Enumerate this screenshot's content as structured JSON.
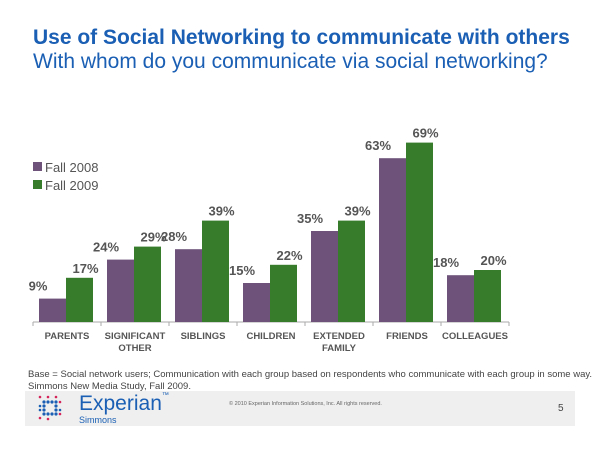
{
  "header": {
    "title": "Use of Social Networking to communicate with others",
    "subtitle": "With whom do you communicate via social networking?"
  },
  "chart_data": {
    "type": "bar",
    "categories": [
      [
        "PARENTS"
      ],
      [
        "SIGNIFICANT",
        "OTHER"
      ],
      [
        "SIBLINGS"
      ],
      [
        "CHILDREN"
      ],
      [
        "EXTENDED",
        "FAMILY"
      ],
      [
        "FRIENDS"
      ],
      [
        "COLLEAGUES"
      ]
    ],
    "series": [
      {
        "name": "Fall 2008",
        "color": "#6e5279",
        "values": [
          9,
          24,
          28,
          15,
          35,
          63,
          18
        ]
      },
      {
        "name": "Fall 2009",
        "color": "#367c2b",
        "values": [
          17,
          29,
          39,
          22,
          39,
          69,
          20
        ]
      }
    ],
    "value_suffix": "%",
    "ylim": [
      0,
      70
    ],
    "legend": "left",
    "grid": false
  },
  "footnote": {
    "line1": "Base = Social network users; Communication with each group based on respondents who communicate with each group in some way.",
    "line2": "Simmons New Media Study, Fall 2009."
  },
  "footer": {
    "brand": "Experian",
    "tm": "™",
    "sub": "Simmons",
    "copyright": "© 2010 Experian Information Solutions, Inc.  All rights reserved.",
    "page": "5"
  }
}
